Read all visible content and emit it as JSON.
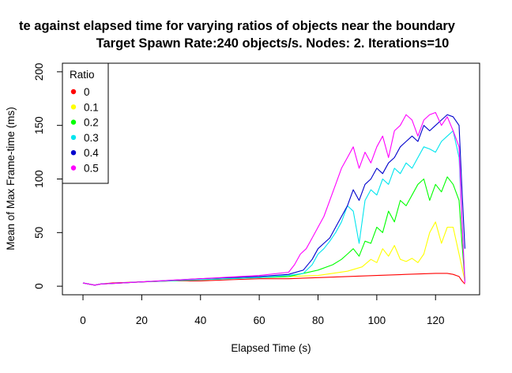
{
  "chart_data": {
    "type": "line",
    "title": "te against elapsed time for varying ratios of objects near the boundary",
    "subtitle": "Target Spawn Rate:240 objects/s. Nodes: 2. Iterations=10",
    "xlabel": "Elapsed Time (s)",
    "ylabel": "Mean of Max Frame-time (ms)",
    "xlim": [
      -7,
      135
    ],
    "ylim": [
      -8,
      208
    ],
    "xticks": [
      0,
      20,
      40,
      60,
      80,
      100,
      120
    ],
    "yticks": [
      0,
      50,
      100,
      150,
      200
    ],
    "grid": false,
    "legend": {
      "title": "Ratio",
      "placement": "top-left"
    },
    "series": [
      {
        "name": "0",
        "color": "#FF0000",
        "x": [
          0,
          2,
          4,
          6,
          10,
          20,
          30,
          40,
          50,
          60,
          70,
          80,
          90,
          100,
          110,
          120,
          124,
          126,
          128,
          129,
          130
        ],
        "y": [
          3,
          2,
          1,
          2,
          3,
          4,
          5,
          5,
          6,
          7,
          7,
          8,
          9,
          10,
          11,
          12,
          12,
          11,
          9,
          5,
          2
        ]
      },
      {
        "name": "0.1",
        "color": "#FFFF00",
        "x": [
          0,
          4,
          6,
          20,
          40,
          60,
          70,
          80,
          90,
          95,
          98,
          100,
          102,
          104,
          106,
          108,
          110,
          112,
          114,
          116,
          118,
          120,
          122,
          124,
          126,
          128,
          130
        ],
        "y": [
          3,
          1,
          2,
          4,
          6,
          8,
          9,
          10,
          14,
          18,
          25,
          22,
          35,
          28,
          38,
          25,
          23,
          26,
          22,
          30,
          50,
          60,
          40,
          55,
          55,
          30,
          5
        ]
      },
      {
        "name": "0.2",
        "color": "#00FF00",
        "x": [
          0,
          4,
          6,
          20,
          40,
          60,
          70,
          75,
          80,
          85,
          88,
          90,
          92,
          94,
          96,
          98,
          100,
          102,
          104,
          106,
          108,
          110,
          112,
          114,
          116,
          118,
          120,
          122,
          124,
          126,
          128,
          129,
          130
        ],
        "y": [
          3,
          1,
          2,
          4,
          6,
          8,
          9,
          12,
          15,
          20,
          25,
          30,
          35,
          28,
          42,
          40,
          55,
          50,
          70,
          60,
          80,
          75,
          85,
          95,
          100,
          80,
          95,
          88,
          102,
          95,
          80,
          40,
          5
        ]
      },
      {
        "name": "0.3",
        "color": "#00E5EE",
        "x": [
          0,
          4,
          6,
          20,
          40,
          60,
          70,
          75,
          78,
          80,
          82,
          84,
          86,
          88,
          90,
          92,
          94,
          96,
          98,
          100,
          102,
          104,
          106,
          108,
          110,
          112,
          114,
          116,
          118,
          120,
          122,
          124,
          126,
          128,
          129,
          130
        ],
        "y": [
          3,
          1,
          2,
          4,
          6,
          8,
          10,
          12,
          20,
          30,
          35,
          42,
          50,
          60,
          75,
          70,
          40,
          80,
          90,
          85,
          100,
          95,
          110,
          105,
          115,
          110,
          120,
          130,
          128,
          125,
          135,
          140,
          145,
          120,
          60,
          5
        ]
      },
      {
        "name": "0.4",
        "color": "#0000CD",
        "x": [
          0,
          4,
          6,
          20,
          40,
          60,
          70,
          75,
          78,
          80,
          82,
          84,
          86,
          88,
          90,
          92,
          94,
          96,
          98,
          100,
          102,
          104,
          106,
          108,
          110,
          112,
          114,
          116,
          118,
          120,
          122,
          124,
          126,
          128,
          129,
          130
        ],
        "y": [
          3,
          1,
          2,
          4,
          7,
          9,
          11,
          15,
          25,
          35,
          40,
          45,
          55,
          65,
          75,
          90,
          80,
          95,
          100,
          110,
          105,
          115,
          120,
          130,
          135,
          140,
          135,
          150,
          145,
          150,
          155,
          160,
          158,
          150,
          90,
          35
        ]
      },
      {
        "name": "0.5",
        "color": "#FF00FF",
        "x": [
          0,
          4,
          6,
          20,
          40,
          60,
          70,
          72,
          74,
          76,
          78,
          80,
          82,
          84,
          86,
          88,
          90,
          92,
          94,
          96,
          98,
          100,
          102,
          104,
          106,
          108,
          110,
          112,
          114,
          116,
          118,
          120,
          122,
          124,
          126,
          128,
          129,
          130
        ],
        "y": [
          3,
          1,
          2,
          4,
          7,
          10,
          13,
          20,
          30,
          35,
          45,
          55,
          65,
          80,
          95,
          110,
          120,
          130,
          110,
          125,
          115,
          130,
          140,
          120,
          145,
          150,
          160,
          155,
          140,
          155,
          160,
          162,
          150,
          158,
          145,
          130,
          60,
          3
        ]
      }
    ]
  }
}
